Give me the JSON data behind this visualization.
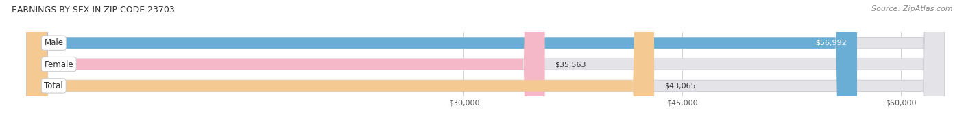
{
  "title": "EARNINGS BY SEX IN ZIP CODE 23703",
  "source": "Source: ZipAtlas.com",
  "categories": [
    "Male",
    "Female",
    "Total"
  ],
  "values": [
    56992,
    35563,
    43065
  ],
  "bar_colors": [
    "#6aaed6",
    "#f4b8c8",
    "#f5c992"
  ],
  "label_colors": [
    "#ffffff",
    "#555555",
    "#555555"
  ],
  "bar_bg_color": "#e4e4e8",
  "xmin": 0,
  "xmax": 63000,
  "axis_min": 28500,
  "xticks": [
    30000,
    45000,
    60000
  ],
  "xtick_labels": [
    "$30,000",
    "$45,000",
    "$60,000"
  ],
  "figsize": [
    14.06,
    1.96
  ],
  "dpi": 100,
  "bar_height": 0.52,
  "bar_gap": 0.15,
  "title_fontsize": 9,
  "source_fontsize": 8,
  "tick_fontsize": 8,
  "label_fontsize": 8,
  "cat_fontsize": 8.5
}
